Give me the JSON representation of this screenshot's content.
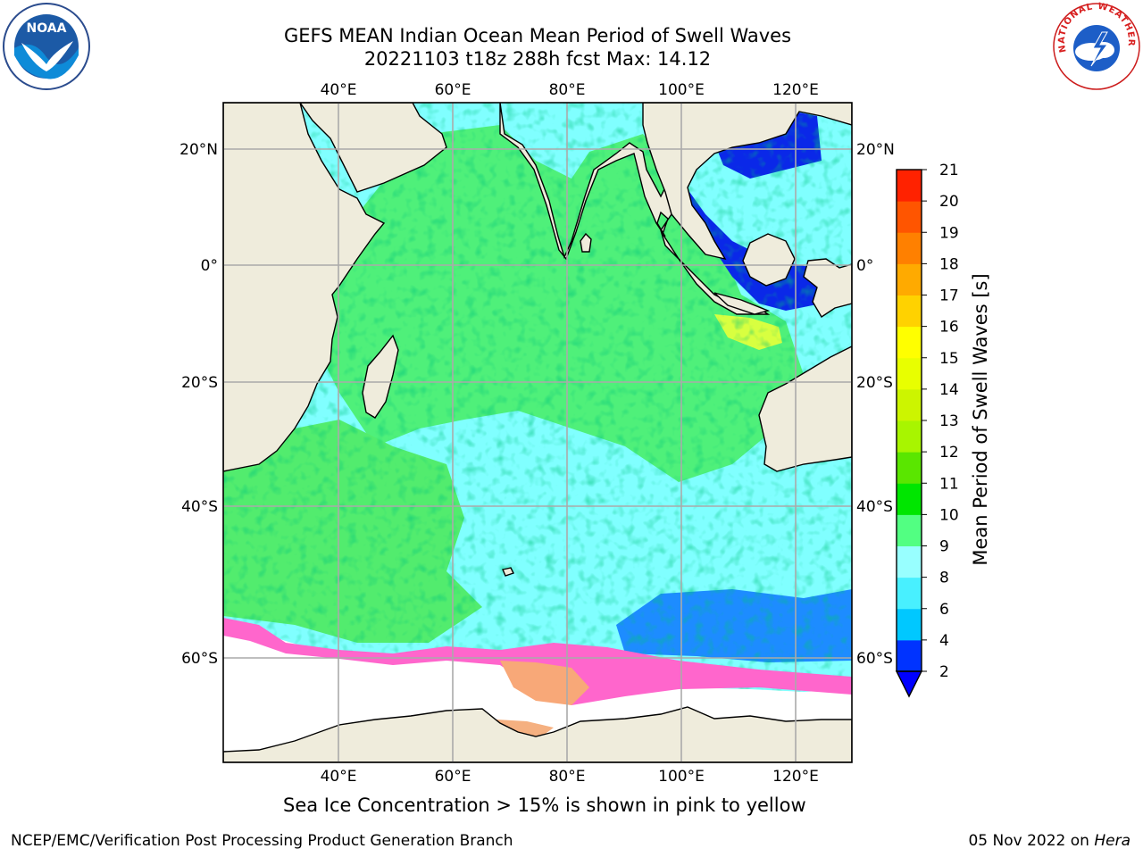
{
  "header": {
    "title_line1": "GEFS MEAN Indian Ocean Mean Period of Swell Waves",
    "title_line2": "20221103 t18z 288h fcst   Max: 14.12"
  },
  "logos": {
    "left": {
      "icon": "noaa-logo",
      "text": "NOAA"
    },
    "right": {
      "icon": "nws-logo",
      "text": "NATIONAL WEATHER SERVICE"
    }
  },
  "map": {
    "longitude_ticks": [
      "40°E",
      "60°E",
      "80°E",
      "100°E",
      "120°E"
    ],
    "latitude_ticks": [
      "20°N",
      "0°",
      "20°S",
      "40°S",
      "60°S"
    ],
    "lon_range": [
      20,
      130
    ],
    "lat_range": [
      -75,
      27
    ],
    "colors": {
      "land": "#efecdc",
      "ocean_default": "#80ffff",
      "sea_ice": "#ff66cc",
      "gridline": "#aaaaaa"
    }
  },
  "colorbar": {
    "label": "Mean Period of Swell Waves [s]",
    "tick_labels": [
      "2",
      "4",
      "6",
      "8",
      "9",
      "10",
      "11",
      "12",
      "13",
      "14",
      "15",
      "16",
      "17",
      "18",
      "19",
      "20",
      "21"
    ],
    "colors": [
      "#0033ff",
      "#00c8ff",
      "#48f0ff",
      "#98ffff",
      "#52ff82",
      "#00e600",
      "#5ae600",
      "#a8f500",
      "#ccf500",
      "#e8ff00",
      "#ffff00",
      "#ffd200",
      "#ffaa00",
      "#ff8000",
      "#ff5500",
      "#ff2200"
    ],
    "extend_color": "#0000ff"
  },
  "caption": "Sea Ice Concentration > 15% is shown in pink to yellow",
  "footer": {
    "left": "NCEP/EMC/Verification Post Processing Product Generation Branch",
    "date": "05 Nov 2022 on",
    "host": "Hera"
  }
}
